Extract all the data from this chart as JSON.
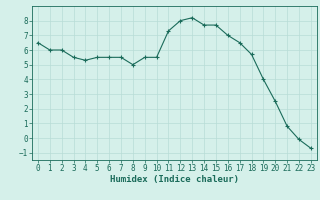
{
  "x": [
    0,
    1,
    2,
    3,
    4,
    5,
    6,
    7,
    8,
    9,
    10,
    11,
    12,
    13,
    14,
    15,
    16,
    17,
    18,
    19,
    20,
    21,
    22,
    23
  ],
  "y": [
    6.5,
    6.0,
    6.0,
    5.5,
    5.3,
    5.5,
    5.5,
    5.5,
    5.0,
    5.5,
    5.5,
    7.3,
    8.0,
    8.2,
    7.7,
    7.7,
    7.0,
    6.5,
    5.7,
    4.0,
    2.5,
    0.8,
    -0.1,
    -0.7
  ],
  "title": "",
  "xlabel": "Humidex (Indice chaleur)",
  "xlim": [
    -0.5,
    23.5
  ],
  "ylim": [
    -1.5,
    9.0
  ],
  "yticks": [
    -1,
    0,
    1,
    2,
    3,
    4,
    5,
    6,
    7,
    8
  ],
  "xticks": [
    0,
    1,
    2,
    3,
    4,
    5,
    6,
    7,
    8,
    9,
    10,
    11,
    12,
    13,
    14,
    15,
    16,
    17,
    18,
    19,
    20,
    21,
    22,
    23
  ],
  "line_color": "#1a6b5a",
  "marker": "+",
  "bg_color": "#d5f0ea",
  "grid_color": "#b8ddd6",
  "label_fontsize": 6.5,
  "tick_fontsize": 5.5
}
